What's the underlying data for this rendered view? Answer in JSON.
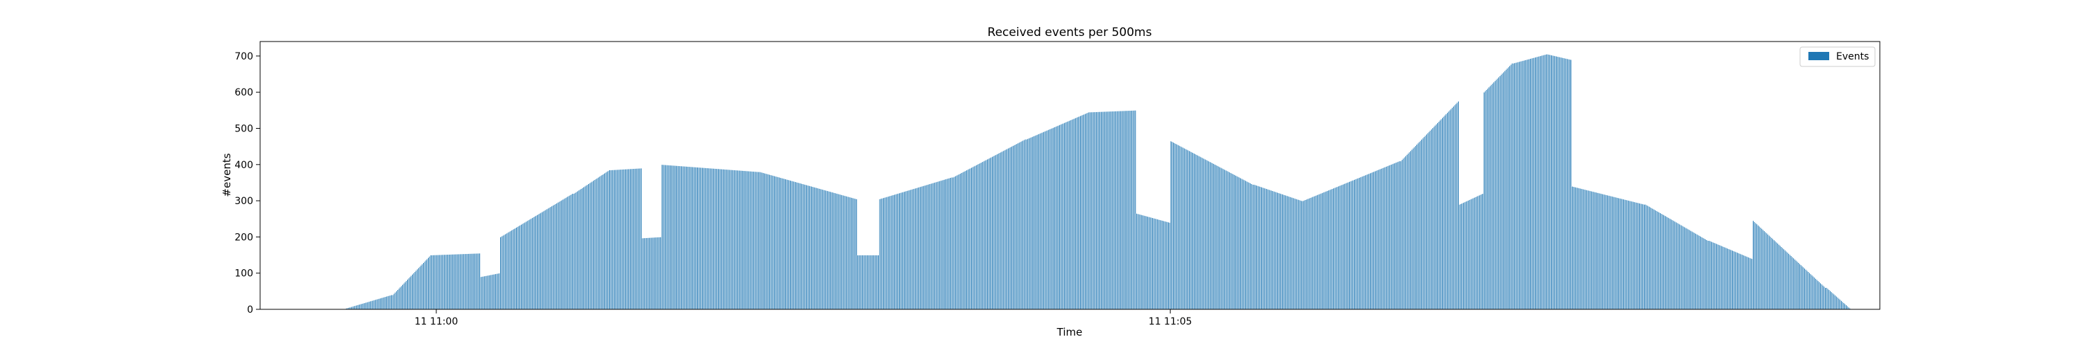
{
  "chart_data": {
    "type": "bar",
    "title": "Received events per 500ms",
    "xlabel": "Time",
    "ylabel": "#events",
    "ylim": [
      0,
      740
    ],
    "yticks": [
      0,
      100,
      200,
      300,
      400,
      500,
      600,
      700
    ],
    "xticks": [
      {
        "t": "11:00:00",
        "label": "11 11:00"
      },
      {
        "t": "11:05:00",
        "label": "11 11:05"
      }
    ],
    "xlim": [
      "10:58:48",
      "11:09:50"
    ],
    "interval_seconds": 0.5,
    "grid": false,
    "legend": {
      "position": "top-right",
      "entries": [
        "Events"
      ]
    },
    "colors": {
      "bar_fill": "#1f77b4",
      "bar_edge": "#ffffff"
    },
    "segments": [
      {
        "from": "10:59:23",
        "to": "10:59:42",
        "shape": "rise",
        "values": [
          3,
          40
        ]
      },
      {
        "from": "10:59:42",
        "to": "10:59:58",
        "shape": "rise",
        "values": [
          40,
          150
        ]
      },
      {
        "from": "10:59:58",
        "to": "11:00:18",
        "shape": "rise",
        "values": [
          150,
          155
        ]
      },
      {
        "from": "11:00:18",
        "to": "11:00:26",
        "shape": "flat",
        "values": [
          90,
          100
        ]
      },
      {
        "from": "11:00:26",
        "to": "11:00:56",
        "shape": "rise",
        "values": [
          200,
          320
        ]
      },
      {
        "from": "11:00:56",
        "to": "11:01:11",
        "shape": "rise",
        "values": [
          320,
          385
        ]
      },
      {
        "from": "11:01:11",
        "to": "11:01:24",
        "shape": "rise",
        "values": [
          385,
          390
        ]
      },
      {
        "from": "11:01:24",
        "to": "11:01:32",
        "shape": "flat",
        "values": [
          197,
          200
        ]
      },
      {
        "from": "11:01:32",
        "to": "11:02:12",
        "shape": "fall",
        "values": [
          400,
          380
        ]
      },
      {
        "from": "11:02:12",
        "to": "11:02:52",
        "shape": "fall",
        "values": [
          380,
          305
        ]
      },
      {
        "from": "11:02:52",
        "to": "11:03:01",
        "shape": "flat",
        "values": [
          150,
          150
        ]
      },
      {
        "from": "11:03:01",
        "to": "11:03:31",
        "shape": "rise",
        "values": [
          305,
          365
        ]
      },
      {
        "from": "11:03:31",
        "to": "11:04:01",
        "shape": "rise",
        "values": [
          365,
          470
        ]
      },
      {
        "from": "11:04:01",
        "to": "11:04:27",
        "shape": "rise",
        "values": [
          470,
          545
        ]
      },
      {
        "from": "11:04:27",
        "to": "11:04:46",
        "shape": "rise",
        "values": [
          545,
          550
        ]
      },
      {
        "from": "11:04:46",
        "to": "11:05:00",
        "shape": "fall",
        "values": [
          265,
          240
        ]
      },
      {
        "from": "11:05:00",
        "to": "11:05:34",
        "shape": "fall",
        "values": [
          465,
          345
        ]
      },
      {
        "from": "11:05:34",
        "to": "11:05:54",
        "shape": "fall",
        "values": [
          345,
          300
        ]
      },
      {
        "from": "11:05:54",
        "to": "11:06:34",
        "shape": "rise",
        "values": [
          300,
          410
        ]
      },
      {
        "from": "11:06:34",
        "to": "11:06:58",
        "shape": "rise",
        "values": [
          410,
          575
        ]
      },
      {
        "from": "11:06:58",
        "to": "11:07:08",
        "shape": "rise",
        "values": [
          290,
          320
        ]
      },
      {
        "from": "11:07:08",
        "to": "11:07:20",
        "shape": "rise",
        "values": [
          600,
          680
        ]
      },
      {
        "from": "11:07:20",
        "to": "11:07:34",
        "shape": "rise",
        "values": [
          680,
          705
        ]
      },
      {
        "from": "11:07:34",
        "to": "11:07:44",
        "shape": "fall",
        "values": [
          705,
          690
        ]
      },
      {
        "from": "11:07:44",
        "to": "11:08:14",
        "shape": "fall",
        "values": [
          340,
          290
        ]
      },
      {
        "from": "11:08:14",
        "to": "11:08:40",
        "shape": "fall",
        "values": [
          290,
          190
        ]
      },
      {
        "from": "11:08:40",
        "to": "11:08:58",
        "shape": "fall",
        "values": [
          190,
          140
        ]
      },
      {
        "from": "11:08:58",
        "to": "11:09:28",
        "shape": "fall",
        "values": [
          245,
          60
        ]
      },
      {
        "from": "11:09:28",
        "to": "11:09:38",
        "shape": "fall",
        "values": [
          60,
          3
        ]
      }
    ]
  }
}
